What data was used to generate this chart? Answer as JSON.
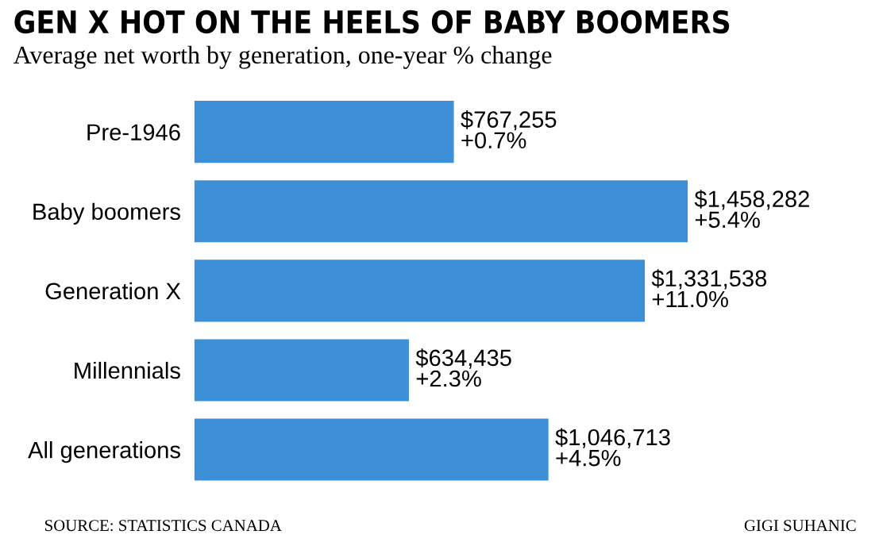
{
  "chart_data": {
    "type": "bar",
    "orientation": "horizontal",
    "title": "GEN X HOT ON THE HEELS OF BABY BOOMERS",
    "subtitle": "Average net worth by generation, one-year % change",
    "categories": [
      "Pre-1946",
      "Baby boomers",
      "Generation X",
      "Millennials",
      "All generations"
    ],
    "values": [
      767255,
      1458282,
      1331538,
      634435,
      1046713
    ],
    "value_labels": [
      "$767,255\n+0.7%",
      "$1,458,282\n+5.4%",
      "$1,331,538\n+11.0%",
      "$634,435\n+2.3%",
      "$1,046,713\n+4.5%"
    ],
    "color": "#3d8fd8",
    "annotations": [
      "SOURCE: STATISTICS CANADA",
      "GIGI SUHANIC"
    ]
  }
}
